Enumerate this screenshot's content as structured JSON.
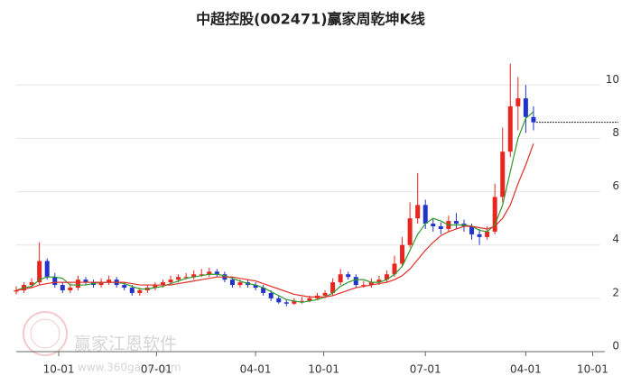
{
  "chart_data": {
    "type": "candlestick",
    "title": "中超控股(002471)赢家周乾坤K线",
    "watermark": {
      "name": "赢家江恩软件",
      "url": "www.360gann.com"
    },
    "x": [
      0,
      3,
      6,
      9,
      12,
      15,
      18,
      21,
      24,
      27,
      30,
      33,
      36,
      39,
      42,
      45,
      48,
      51,
      54,
      57,
      60,
      63,
      66,
      69,
      72,
      75,
      78,
      81,
      84,
      87,
      90,
      93,
      96,
      99,
      102,
      105,
      108,
      111,
      114,
      117,
      120,
      123,
      126,
      129,
      132,
      135,
      138,
      141,
      144,
      147,
      150,
      153,
      156,
      159,
      162,
      165,
      168,
      171,
      174,
      177,
      180,
      183,
      186,
      189,
      192,
      195,
      198,
      201
    ],
    "open": [
      2.25,
      2.3,
      2.5,
      2.6,
      3.4,
      2.8,
      2.5,
      2.3,
      2.4,
      2.7,
      2.6,
      2.5,
      2.6,
      2.7,
      2.5,
      2.4,
      2.2,
      2.3,
      2.4,
      2.5,
      2.6,
      2.7,
      2.8,
      2.8,
      2.9,
      2.9,
      3.0,
      2.9,
      2.7,
      2.5,
      2.6,
      2.5,
      2.4,
      2.2,
      2.0,
      1.85,
      1.8,
      1.9,
      1.9,
      2.0,
      2.1,
      2.2,
      2.6,
      2.9,
      2.8,
      2.5,
      2.5,
      2.6,
      2.7,
      2.9,
      3.3,
      4.0,
      5.0,
      5.5,
      4.8,
      4.7,
      4.6,
      4.9,
      4.8,
      4.7,
      4.4,
      4.3,
      4.5,
      5.8,
      7.5,
      9.2,
      9.5,
      8.8
    ],
    "high": [
      2.45,
      2.6,
      2.75,
      4.1,
      3.5,
      2.95,
      2.6,
      2.55,
      2.85,
      2.8,
      2.7,
      2.75,
      2.85,
      2.8,
      2.6,
      2.5,
      2.4,
      2.5,
      2.6,
      2.7,
      2.85,
      2.9,
      2.95,
      3.05,
      3.1,
      3.15,
      3.1,
      3.0,
      2.8,
      2.7,
      2.7,
      2.6,
      2.5,
      2.3,
      2.1,
      1.95,
      2.0,
      2.05,
      2.1,
      2.2,
      2.3,
      2.75,
      3.1,
      3.0,
      2.9,
      2.65,
      2.75,
      2.85,
      3.05,
      3.6,
      4.3,
      5.6,
      6.7,
      5.7,
      5.0,
      4.85,
      5.1,
      5.2,
      4.95,
      4.8,
      4.6,
      4.7,
      6.3,
      8.4,
      10.8,
      10.3,
      10.0,
      9.2
    ],
    "low": [
      2.15,
      2.2,
      2.4,
      2.5,
      2.7,
      2.4,
      2.2,
      2.2,
      2.3,
      2.5,
      2.4,
      2.4,
      2.5,
      2.4,
      2.3,
      2.1,
      2.1,
      2.2,
      2.3,
      2.4,
      2.5,
      2.6,
      2.7,
      2.7,
      2.8,
      2.8,
      2.8,
      2.6,
      2.4,
      2.4,
      2.4,
      2.3,
      2.1,
      1.9,
      1.8,
      1.7,
      1.75,
      1.8,
      1.85,
      1.95,
      2.0,
      2.1,
      2.5,
      2.7,
      2.4,
      2.4,
      2.4,
      2.5,
      2.6,
      2.8,
      3.2,
      3.9,
      4.8,
      4.6,
      4.5,
      4.4,
      4.5,
      4.6,
      4.5,
      4.2,
      4.0,
      4.2,
      4.4,
      5.6,
      7.3,
      8.3,
      8.2,
      8.3
    ],
    "close": [
      2.3,
      2.5,
      2.6,
      3.4,
      2.8,
      2.5,
      2.3,
      2.4,
      2.7,
      2.6,
      2.5,
      2.6,
      2.7,
      2.5,
      2.4,
      2.2,
      2.3,
      2.4,
      2.5,
      2.6,
      2.7,
      2.8,
      2.8,
      2.9,
      2.9,
      3.0,
      2.9,
      2.7,
      2.5,
      2.6,
      2.5,
      2.4,
      2.2,
      2.0,
      1.85,
      1.8,
      1.9,
      1.9,
      2.0,
      2.1,
      2.2,
      2.6,
      2.9,
      2.8,
      2.5,
      2.5,
      2.6,
      2.7,
      2.9,
      3.3,
      4.0,
      5.0,
      5.5,
      4.8,
      4.7,
      4.6,
      4.9,
      4.8,
      4.7,
      4.4,
      4.3,
      4.5,
      5.8,
      7.5,
      9.2,
      9.5,
      8.8,
      8.6
    ],
    "up_color": "#e8251e",
    "down_color": "#2233cc",
    "moving_averages": [
      {
        "color": "#2e9a2e",
        "values": [
          2.3,
          2.4,
          2.45,
          2.7,
          2.8,
          2.8,
          2.75,
          2.5,
          2.5,
          2.5,
          2.55,
          2.6,
          2.6,
          2.6,
          2.55,
          2.45,
          2.35,
          2.35,
          2.4,
          2.45,
          2.55,
          2.65,
          2.75,
          2.8,
          2.85,
          2.9,
          2.9,
          2.85,
          2.75,
          2.65,
          2.55,
          2.5,
          2.4,
          2.25,
          2.1,
          1.95,
          1.9,
          1.85,
          1.9,
          1.95,
          2.05,
          2.2,
          2.45,
          2.6,
          2.7,
          2.7,
          2.6,
          2.6,
          2.7,
          2.9,
          3.2,
          3.8,
          4.4,
          4.8,
          5.0,
          4.9,
          4.75,
          4.75,
          4.75,
          4.7,
          4.55,
          4.5,
          4.75,
          5.5,
          6.75,
          8.0,
          8.75,
          9.0
        ]
      },
      {
        "color": "#e0302a",
        "values": [
          2.3,
          2.35,
          2.4,
          2.5,
          2.55,
          2.6,
          2.6,
          2.6,
          2.6,
          2.6,
          2.6,
          2.6,
          2.6,
          2.6,
          2.6,
          2.55,
          2.5,
          2.5,
          2.5,
          2.5,
          2.5,
          2.55,
          2.6,
          2.65,
          2.7,
          2.75,
          2.8,
          2.8,
          2.8,
          2.75,
          2.7,
          2.65,
          2.55,
          2.45,
          2.35,
          2.25,
          2.15,
          2.1,
          2.05,
          2.05,
          2.05,
          2.1,
          2.2,
          2.3,
          2.4,
          2.45,
          2.5,
          2.55,
          2.6,
          2.7,
          2.85,
          3.1,
          3.45,
          3.8,
          4.1,
          4.35,
          4.5,
          4.6,
          4.7,
          4.7,
          4.65,
          4.6,
          4.7,
          5.0,
          5.5,
          6.3,
          7.0,
          7.8
        ]
      }
    ],
    "xlim": [
      0,
      234
    ],
    "xticks": [
      {
        "value": 16.5,
        "label": "10-01"
      },
      {
        "value": 54.5,
        "label": "07-01"
      },
      {
        "value": 93,
        "label": "04-01"
      },
      {
        "value": 119.5,
        "label": "10-01"
      },
      {
        "value": 159,
        "label": "07-01"
      },
      {
        "value": 198,
        "label": "04-01"
      },
      {
        "value": 224,
        "label": "10-01"
      }
    ],
    "ylim": [
      0,
      11.7
    ],
    "yticks": [
      0,
      2,
      4,
      6,
      8,
      10
    ],
    "grid": true
  }
}
